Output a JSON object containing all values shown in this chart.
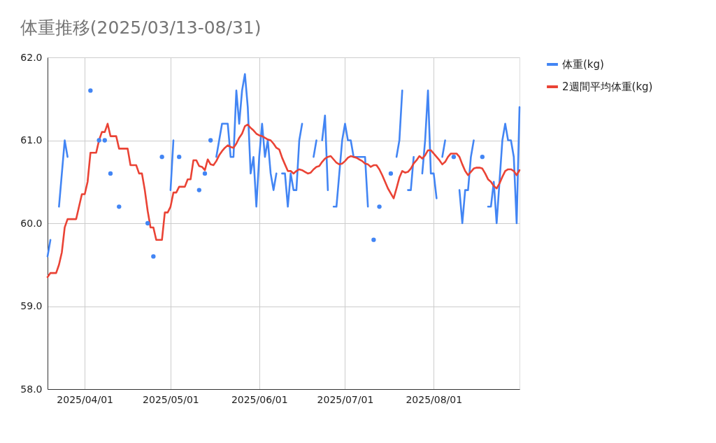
{
  "chart_data": {
    "type": "line",
    "title": "体重推移(2025/03/13-08/31)",
    "x": [
      "2025-03-19",
      "2025-03-20",
      "2025-03-21",
      "2025-03-22",
      "2025-03-23",
      "2025-03-24",
      "2025-03-25",
      "2025-03-26",
      "2025-03-27",
      "2025-03-28",
      "2025-03-29",
      "2025-03-30",
      "2025-03-31",
      "2025-04-01",
      "2025-04-02",
      "2025-04-03",
      "2025-04-04",
      "2025-04-05",
      "2025-04-06",
      "2025-04-07",
      "2025-04-08",
      "2025-04-09",
      "2025-04-10",
      "2025-04-11",
      "2025-04-12",
      "2025-04-13",
      "2025-04-14",
      "2025-04-15",
      "2025-04-16",
      "2025-04-17",
      "2025-04-18",
      "2025-04-19",
      "2025-04-20",
      "2025-04-21",
      "2025-04-22",
      "2025-04-23",
      "2025-04-24",
      "2025-04-25",
      "2025-04-26",
      "2025-04-27",
      "2025-04-28",
      "2025-04-29",
      "2025-04-30",
      "2025-05-01",
      "2025-05-02",
      "2025-05-03",
      "2025-05-04",
      "2025-05-05",
      "2025-05-06",
      "2025-05-07",
      "2025-05-08",
      "2025-05-09",
      "2025-05-10",
      "2025-05-11",
      "2025-05-12",
      "2025-05-13",
      "2025-05-14",
      "2025-05-15",
      "2025-05-16",
      "2025-05-17",
      "2025-05-18",
      "2025-05-19",
      "2025-05-20",
      "2025-05-21",
      "2025-05-22",
      "2025-05-23",
      "2025-05-24",
      "2025-05-25",
      "2025-05-26",
      "2025-05-27",
      "2025-05-28",
      "2025-05-29",
      "2025-05-30",
      "2025-05-31",
      "2025-06-01",
      "2025-06-02",
      "2025-06-03",
      "2025-06-04",
      "2025-06-05",
      "2025-06-06",
      "2025-06-07",
      "2025-06-08",
      "2025-06-09",
      "2025-06-10",
      "2025-06-11",
      "2025-06-12",
      "2025-06-13",
      "2025-06-14",
      "2025-06-15",
      "2025-06-16",
      "2025-06-17",
      "2025-06-18",
      "2025-06-19",
      "2025-06-20",
      "2025-06-21",
      "2025-06-22",
      "2025-06-23",
      "2025-06-24",
      "2025-06-25",
      "2025-06-26",
      "2025-06-27",
      "2025-06-28",
      "2025-06-29",
      "2025-06-30",
      "2025-07-01",
      "2025-07-02",
      "2025-07-03",
      "2025-07-04",
      "2025-07-05",
      "2025-07-06",
      "2025-07-07",
      "2025-07-08",
      "2025-07-09",
      "2025-07-10",
      "2025-07-11",
      "2025-07-12",
      "2025-07-13",
      "2025-07-14",
      "2025-07-15",
      "2025-07-16",
      "2025-07-17",
      "2025-07-18",
      "2025-07-19",
      "2025-07-20",
      "2025-07-21",
      "2025-07-22",
      "2025-07-23",
      "2025-07-24",
      "2025-07-25",
      "2025-07-26",
      "2025-07-27",
      "2025-07-28",
      "2025-07-29",
      "2025-07-30",
      "2025-07-31",
      "2025-08-01",
      "2025-08-02",
      "2025-08-03",
      "2025-08-04",
      "2025-08-05",
      "2025-08-06",
      "2025-08-07",
      "2025-08-08",
      "2025-08-09",
      "2025-08-10",
      "2025-08-11",
      "2025-08-12",
      "2025-08-13",
      "2025-08-14",
      "2025-08-15",
      "2025-08-16",
      "2025-08-17",
      "2025-08-18",
      "2025-08-19",
      "2025-08-20",
      "2025-08-21",
      "2025-08-22",
      "2025-08-23",
      "2025-08-24",
      "2025-08-25",
      "2025-08-26",
      "2025-08-27",
      "2025-08-28",
      "2025-08-29",
      "2025-08-30",
      "2025-08-31"
    ],
    "series": [
      {
        "name": "体重(kg)",
        "color": "#4285f4",
        "values": [
          59.6,
          59.8,
          null,
          null,
          60.2,
          60.6,
          61.0,
          60.8,
          null,
          null,
          null,
          null,
          null,
          null,
          null,
          61.6,
          null,
          null,
          61.0,
          null,
          61.0,
          null,
          60.6,
          null,
          null,
          60.2,
          null,
          null,
          null,
          null,
          null,
          null,
          null,
          null,
          null,
          60.0,
          null,
          59.6,
          null,
          null,
          60.8,
          null,
          null,
          60.4,
          61.0,
          null,
          60.8,
          null,
          null,
          null,
          null,
          null,
          null,
          60.4,
          null,
          60.6,
          null,
          61.0,
          null,
          60.8,
          61.0,
          61.2,
          61.2,
          61.2,
          60.8,
          60.8,
          61.6,
          61.2,
          61.6,
          61.8,
          61.4,
          60.6,
          60.8,
          60.2,
          60.8,
          61.2,
          60.8,
          61.0,
          60.6,
          60.4,
          60.6,
          null,
          60.6,
          60.6,
          60.2,
          60.6,
          60.4,
          60.4,
          61.0,
          61.2,
          null,
          null,
          null,
          60.8,
          61.0,
          null,
          61.0,
          61.3,
          60.4,
          null,
          60.2,
          60.2,
          60.6,
          61.0,
          61.2,
          61.0,
          61.0,
          60.8,
          60.8,
          60.8,
          60.8,
          60.8,
          60.2,
          null,
          59.8,
          null,
          60.2,
          null,
          null,
          null,
          60.6,
          null,
          60.8,
          61.0,
          61.6,
          null,
          60.4,
          60.4,
          60.8,
          null,
          null,
          60.6,
          61.0,
          61.6,
          60.6,
          60.6,
          60.3,
          null,
          60.8,
          61.0,
          null,
          null,
          60.8,
          null,
          60.4,
          60.0,
          60.4,
          60.4,
          60.8,
          61.0,
          null,
          null,
          60.8,
          null,
          60.2,
          60.2,
          60.5,
          60.0,
          60.5,
          61.0,
          61.2,
          61.0,
          61.0,
          60.8,
          60.0,
          61.4
        ]
      },
      {
        "name": "2週間平均体重(kg)",
        "color": "#ea4335",
        "values": [
          59.35,
          59.4,
          59.4,
          59.4,
          59.5,
          59.65,
          59.95,
          60.05,
          60.05,
          60.05,
          60.05,
          60.2,
          60.35,
          60.35,
          60.5,
          60.85,
          60.85,
          60.85,
          61.0,
          61.1,
          61.1,
          61.2,
          61.05,
          61.05,
          61.05,
          60.9,
          60.9,
          60.9,
          60.9,
          60.7,
          60.7,
          60.7,
          60.6,
          60.6,
          60.4,
          60.15,
          59.95,
          59.95,
          59.8,
          59.8,
          59.8,
          60.13,
          60.13,
          60.2,
          60.37,
          60.37,
          60.44,
          60.44,
          60.44,
          60.53,
          60.53,
          60.76,
          60.76,
          60.69,
          60.68,
          60.64,
          60.77,
          60.71,
          60.7,
          60.75,
          60.82,
          60.87,
          60.91,
          60.94,
          60.92,
          60.91,
          60.96,
          61.03,
          61.08,
          61.17,
          61.19,
          61.15,
          61.12,
          61.08,
          61.06,
          61.05,
          61.03,
          61.01,
          61.0,
          60.96,
          60.91,
          60.89,
          60.79,
          60.71,
          60.63,
          60.63,
          60.6,
          60.63,
          60.65,
          60.64,
          60.62,
          60.6,
          60.61,
          60.65,
          60.68,
          60.69,
          60.74,
          60.78,
          60.8,
          60.81,
          60.77,
          60.73,
          60.71,
          60.72,
          60.75,
          60.79,
          60.81,
          60.8,
          60.79,
          60.77,
          60.75,
          60.72,
          60.71,
          60.68,
          60.7,
          60.7,
          60.65,
          60.58,
          60.5,
          60.42,
          60.36,
          60.3,
          60.42,
          60.55,
          60.63,
          60.61,
          60.62,
          60.66,
          60.72,
          60.76,
          60.81,
          60.78,
          60.82,
          60.88,
          60.88,
          60.84,
          60.8,
          60.76,
          60.71,
          60.74,
          60.8,
          60.84,
          60.84,
          60.84,
          60.8,
          60.71,
          60.63,
          60.58,
          60.62,
          60.66,
          60.67,
          60.67,
          60.66,
          60.6,
          60.53,
          60.5,
          60.45,
          60.42,
          60.48,
          60.56,
          60.63,
          60.65,
          60.65,
          60.63,
          60.58,
          60.64
        ]
      }
    ],
    "xlim": [
      "2025-03-19",
      "2025-08-31"
    ],
    "xticks": [
      {
        "value": "2025-04-01",
        "label": "2025/04/01"
      },
      {
        "value": "2025-05-01",
        "label": "2025/05/01"
      },
      {
        "value": "2025-06-01",
        "label": "2025/06/01"
      },
      {
        "value": "2025-07-01",
        "label": "2025/07/01"
      },
      {
        "value": "2025-08-01",
        "label": "2025/08/01"
      }
    ],
    "ylim": [
      58,
      62
    ],
    "yticks": [
      {
        "value": 58,
        "label": "58.0"
      },
      {
        "value": 59,
        "label": "59.0"
      },
      {
        "value": 60,
        "label": "60.0"
      },
      {
        "value": 61,
        "label": "61.0"
      },
      {
        "value": 62,
        "label": "62.0"
      }
    ],
    "grid": true,
    "legend": "top right",
    "line_style": "solid"
  }
}
